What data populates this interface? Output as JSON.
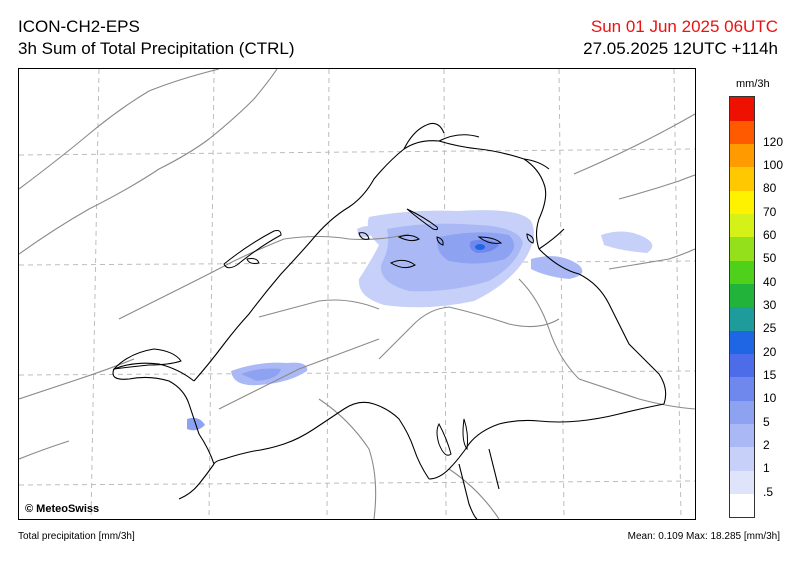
{
  "header": {
    "model": "ICON-CH2-EPS",
    "product": "3h Sum of Total Precipitation (CTRL)",
    "valid_time": "Sun 01 Jun 2025 06UTC",
    "run_time": "27.05.2025 12UTC +114h",
    "valid_time_color": "#ee1111"
  },
  "map": {
    "copyright": "© MeteoSwiss"
  },
  "colorbar": {
    "unit": "mm/3h",
    "levels": [
      {
        "label": ".5",
        "color": "#dfe4fb"
      },
      {
        "label": "1",
        "color": "#c6d0f8"
      },
      {
        "label": "2",
        "color": "#aab9f5"
      },
      {
        "label": "5",
        "color": "#8da2f1"
      },
      {
        "label": "10",
        "color": "#6f88ed"
      },
      {
        "label": "15",
        "color": "#4c6cea"
      },
      {
        "label": "20",
        "color": "#1e66e4"
      },
      {
        "label": "25",
        "color": "#1e9b9b"
      },
      {
        "label": "30",
        "color": "#22b33a"
      },
      {
        "label": "40",
        "color": "#4fd01a"
      },
      {
        "label": "50",
        "color": "#94e01a"
      },
      {
        "label": "60",
        "color": "#d4f218"
      },
      {
        "label": "70",
        "color": "#fff200"
      },
      {
        "label": "80",
        "color": "#ffc800"
      },
      {
        "label": "100",
        "color": "#ff9a00"
      },
      {
        "label": "120",
        "color": "#ff5a00"
      },
      {
        "label": "",
        "color": "#ee1100"
      }
    ]
  },
  "footer": {
    "variable": "Total precipitation [mm/3h]",
    "stats_label": "Mean:",
    "mean": "0.109",
    "max_label": "Max:",
    "max": "18.285",
    "unit": "[mm/3h]"
  }
}
